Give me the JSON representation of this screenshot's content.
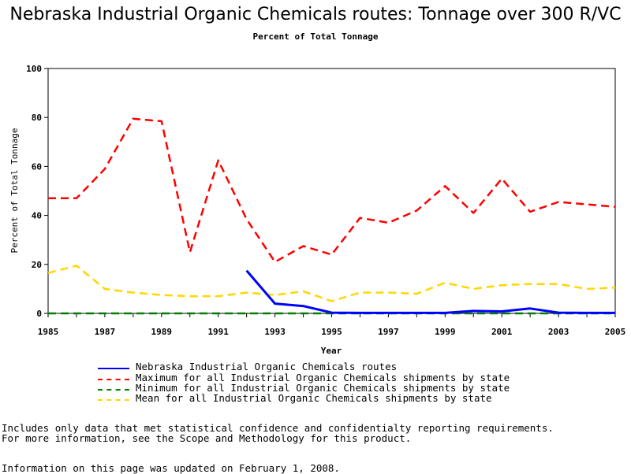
{
  "chart_data": {
    "type": "line",
    "title": "Nebraska Industrial Organic Chemicals routes: Tonnage over 300 R/VC",
    "subtitle": "Percent of Total Tonnage",
    "xlabel": "Year",
    "ylabel": "Percent of Total Tonnage",
    "xlim": [
      1985,
      2005
    ],
    "ylim": [
      0,
      100
    ],
    "xticks": [
      "1985",
      "1987",
      "1989",
      "1991",
      "1993",
      "1995",
      "1997",
      "1999",
      "2001",
      "2003",
      "2005"
    ],
    "yticks": [
      "0",
      "20",
      "40",
      "60",
      "80",
      "100"
    ],
    "series": [
      {
        "name": "Nebraska Industrial Organic Chemicals routes",
        "color": "#0000ff",
        "dash": "solid",
        "x": [
          1992,
          1993,
          1994,
          1995,
          1996,
          1997,
          1998,
          1999,
          2000,
          2001,
          2002,
          2003,
          2004,
          2005
        ],
        "values": [
          17.5,
          4,
          3,
          0.3,
          0.2,
          0.2,
          0.2,
          0.2,
          1,
          0.8,
          2,
          0.3,
          0.2,
          0.2
        ]
      },
      {
        "name": "Maximum for all Industrial Organic Chemicals shipments by state",
        "color": "#ff0000",
        "dash": "dashed",
        "x": [
          1985,
          1986,
          1987,
          1988,
          1989,
          1990,
          1991,
          1992,
          1993,
          1994,
          1995,
          1996,
          1997,
          1998,
          1999,
          2000,
          2001,
          2002,
          2003,
          2004,
          2005
        ],
        "values": [
          47,
          47,
          59,
          79.5,
          78.5,
          25,
          62.5,
          38.5,
          21,
          27.5,
          24,
          39,
          37,
          42,
          52,
          41,
          55,
          41.5,
          45.5,
          44.5,
          43.5
        ]
      },
      {
        "name": "Minimum for all Industrial Organic Chemicals shipments by state",
        "color": "#008000",
        "dash": "dashed",
        "x": [
          1985,
          1986,
          1987,
          1988,
          1989,
          1990,
          1991,
          1992,
          1993,
          1994,
          1995,
          1996,
          1997,
          1998,
          1999,
          2000,
          2001,
          2002,
          2003,
          2004,
          2005
        ],
        "values": [
          0,
          0,
          0,
          0,
          0,
          0,
          0,
          0,
          0,
          0,
          0,
          0,
          0,
          0,
          0,
          0,
          0,
          0,
          0,
          0,
          0
        ]
      },
      {
        "name": "Mean for all Industrial Organic Chemicals shipments by state",
        "color": "#ffd700",
        "dash": "dashed",
        "x": [
          1985,
          1986,
          1987,
          1988,
          1989,
          1990,
          1991,
          1992,
          1993,
          1994,
          1995,
          1996,
          1997,
          1998,
          1999,
          2000,
          2001,
          2002,
          2003,
          2004,
          2005
        ],
        "values": [
          16.5,
          19.5,
          10,
          8.5,
          7.5,
          7,
          7,
          8.5,
          7.5,
          9,
          5,
          8.5,
          8.5,
          8,
          12.5,
          10,
          11.5,
          12,
          12,
          10,
          10.5
        ]
      }
    ]
  },
  "notes": {
    "line1": "Includes only data that met statistical confidence and confidentialty reporting requirements.",
    "line2": "For more information, see the Scope and Methodology for this product.",
    "line3": "Information on this page was updated on February 1, 2008."
  }
}
